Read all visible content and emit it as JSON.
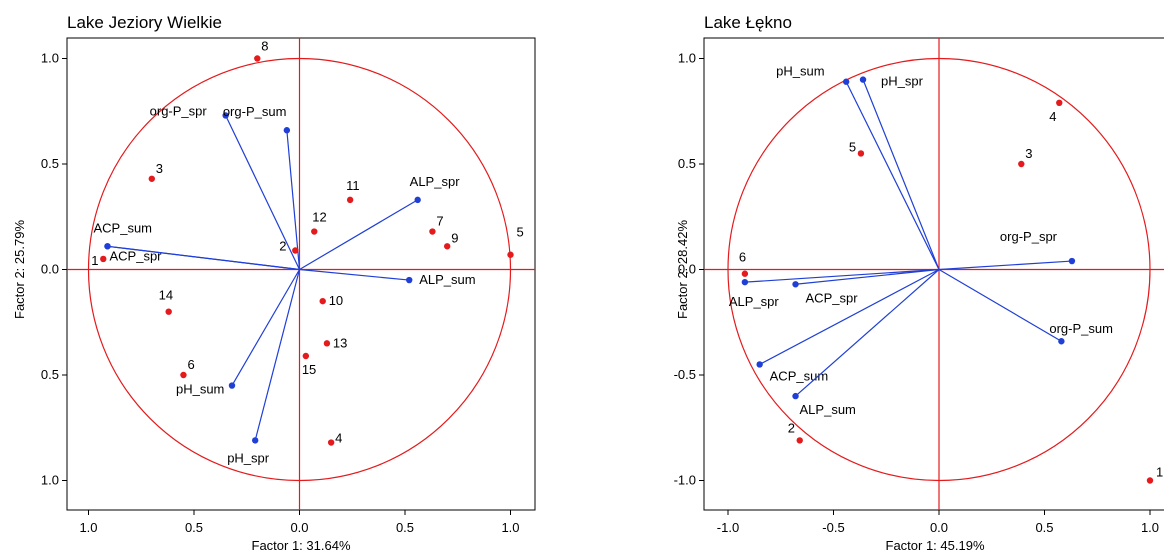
{
  "colors": {
    "circle": "#e41a1c",
    "vector": "#1f3fd6",
    "point": "#e41a1c",
    "frame": "#000000"
  },
  "chart_data": [
    {
      "type": "scatter",
      "title": "Lake Jeziory Wielkie",
      "xlabel": "Factor 1: 31.64%",
      "ylabel": "Factor 2: 25.79%",
      "xlim": [
        -1.0,
        1.0
      ],
      "ylim": [
        -1.0,
        1.0
      ],
      "x_ticks": [
        -1.0,
        -0.5,
        0.0,
        0.5,
        1.0
      ],
      "x_tick_labels": [
        "1.0",
        "0.5",
        "0.0",
        "0.5",
        "1.0"
      ],
      "y_ticks": [
        1.0,
        0.5,
        0.0,
        -0.5,
        -1.0
      ],
      "y_tick_labels": [
        "1.0",
        "0.5",
        "0.0",
        "0.5",
        "1.0"
      ],
      "unit_circle": true,
      "variables": [
        {
          "name": "ALP_spr",
          "x": 0.56,
          "y": 0.33
        },
        {
          "name": "ALP_sum",
          "x": 0.52,
          "y": -0.05
        },
        {
          "name": "ACP_sum",
          "x": -0.91,
          "y": 0.11
        },
        {
          "name": "ACP_spr",
          "x": -0.91,
          "y": 0.11
        },
        {
          "name": "org-P_spr",
          "x": -0.35,
          "y": 0.73
        },
        {
          "name": "org-P_sum",
          "x": -0.06,
          "y": 0.66
        },
        {
          "name": "pH_sum",
          "x": -0.32,
          "y": -0.55
        },
        {
          "name": "pH_spr",
          "x": -0.21,
          "y": -0.81
        }
      ],
      "cases": [
        {
          "label": "1",
          "x": -0.93,
          "y": 0.05
        },
        {
          "label": "2",
          "x": -0.02,
          "y": 0.09
        },
        {
          "label": "3",
          "x": -0.7,
          "y": 0.43
        },
        {
          "label": "4",
          "x": 0.15,
          "y": -0.82
        },
        {
          "label": "5",
          "x": 1.0,
          "y": 0.07
        },
        {
          "label": "6",
          "x": -0.55,
          "y": -0.5
        },
        {
          "label": "7",
          "x": 0.63,
          "y": 0.18
        },
        {
          "label": "8",
          "x": -0.2,
          "y": 1.0
        },
        {
          "label": "9",
          "x": 0.7,
          "y": 0.11
        },
        {
          "label": "10",
          "x": 0.11,
          "y": -0.15
        },
        {
          "label": "11",
          "x": 0.24,
          "y": 0.33
        },
        {
          "label": "12",
          "x": 0.07,
          "y": 0.18
        },
        {
          "label": "13",
          "x": 0.13,
          "y": -0.35
        },
        {
          "label": "14",
          "x": -0.62,
          "y": -0.2
        },
        {
          "label": "15",
          "x": 0.03,
          "y": -0.41
        }
      ]
    },
    {
      "type": "scatter",
      "title": "Lake Łękno",
      "xlabel": "Factor 1: 45.19%",
      "ylabel": "Factor 2: 28.42%",
      "xlim": [
        -1.0,
        1.0
      ],
      "ylim": [
        -1.0,
        1.0
      ],
      "x_ticks": [
        -1.0,
        -0.5,
        0.0,
        0.5,
        1.0
      ],
      "x_tick_labels": [
        "-1.0",
        "-0.5",
        "0.0",
        "0.5",
        "1.0"
      ],
      "y_ticks": [
        1.0,
        0.5,
        0.0,
        -0.5,
        -1.0
      ],
      "y_tick_labels": [
        "1.0",
        "0.5",
        "0.0",
        "-0.5",
        "-1.0"
      ],
      "unit_circle": true,
      "variables": [
        {
          "name": "pH_sum",
          "x": -0.44,
          "y": 0.89
        },
        {
          "name": "pH_spr",
          "x": -0.36,
          "y": 0.9
        },
        {
          "name": "org-P_spr",
          "x": 0.63,
          "y": 0.04
        },
        {
          "name": "org-P_sum",
          "x": 0.58,
          "y": -0.34
        },
        {
          "name": "ALP_spr",
          "x": -0.92,
          "y": -0.06
        },
        {
          "name": "ACP_spr",
          "x": -0.68,
          "y": -0.07
        },
        {
          "name": "ACP_sum",
          "x": -0.85,
          "y": -0.45
        },
        {
          "name": "ALP_sum",
          "x": -0.68,
          "y": -0.6
        }
      ],
      "cases": [
        {
          "label": "1",
          "x": 1.0,
          "y": -1.0
        },
        {
          "label": "2",
          "x": -0.66,
          "y": -0.81
        },
        {
          "label": "3",
          "x": 0.39,
          "y": 0.5
        },
        {
          "label": "4",
          "x": 0.57,
          "y": 0.79
        },
        {
          "label": "5",
          "x": -0.37,
          "y": 0.55
        },
        {
          "label": "6",
          "x": -0.92,
          "y": -0.02
        }
      ]
    }
  ]
}
